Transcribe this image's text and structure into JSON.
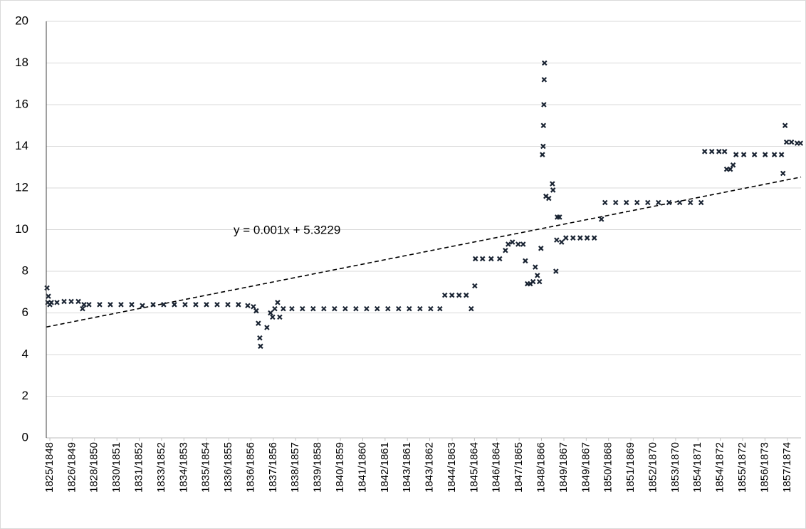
{
  "chart_data": {
    "type": "scatter",
    "marker": "x",
    "color": "#1a2433",
    "grid": true,
    "xlim": [
      0,
      7200
    ],
    "ylim": [
      0,
      20
    ],
    "yticks": [
      0,
      2,
      4,
      6,
      8,
      10,
      12,
      14,
      16,
      18,
      20
    ],
    "xticks": [
      {
        "value": 34,
        "label": "1825/1848"
      },
      {
        "value": 247,
        "label": "1826/1849"
      },
      {
        "value": 460,
        "label": "1828/1850"
      },
      {
        "value": 674,
        "label": "1830/1851"
      },
      {
        "value": 887,
        "label": "1831/1852"
      },
      {
        "value": 1100,
        "label": "1833/1852"
      },
      {
        "value": 1313,
        "label": "1834/1853"
      },
      {
        "value": 1526,
        "label": "1835/1854"
      },
      {
        "value": 1740,
        "label": "1836/1855"
      },
      {
        "value": 1953,
        "label": "1836/1856"
      },
      {
        "value": 2166,
        "label": "1837/1856"
      },
      {
        "value": 2379,
        "label": "1838/1857"
      },
      {
        "value": 2592,
        "label": "1839/1858"
      },
      {
        "value": 2806,
        "label": "1840/1859"
      },
      {
        "value": 3019,
        "label": "1841/1860"
      },
      {
        "value": 3232,
        "label": "1842/1861"
      },
      {
        "value": 3445,
        "label": "1843/1861"
      },
      {
        "value": 3658,
        "label": "1843/1862"
      },
      {
        "value": 3872,
        "label": "1844/1863"
      },
      {
        "value": 4085,
        "label": "1845/1864"
      },
      {
        "value": 4298,
        "label": "1846/1864"
      },
      {
        "value": 4511,
        "label": "1847/1865"
      },
      {
        "value": 4724,
        "label": "1848/1866"
      },
      {
        "value": 4938,
        "label": "1849/1867"
      },
      {
        "value": 5151,
        "label": "1849/1867"
      },
      {
        "value": 5364,
        "label": "1850/1868"
      },
      {
        "value": 5577,
        "label": "1851/1869"
      },
      {
        "value": 5790,
        "label": "1852/1870"
      },
      {
        "value": 6004,
        "label": "1853/1870"
      },
      {
        "value": 6217,
        "label": "1854/1871"
      },
      {
        "value": 6430,
        "label": "1854/1872"
      },
      {
        "value": 6643,
        "label": "1855/1872"
      },
      {
        "value": 6856,
        "label": "1856/1873"
      },
      {
        "value": 7070,
        "label": "1857/1874"
      }
    ],
    "x": [
      7,
      14,
      20,
      34,
      48,
      102,
      170,
      238,
      306,
      346,
      360,
      407,
      509,
      611,
      713,
      815,
      917,
      1019,
      1120,
      1222,
      1324,
      1426,
      1528,
      1630,
      1732,
      1833,
      1922,
      1976,
      2003,
      2023,
      2037,
      2044,
      2105,
      2139,
      2159,
      2180,
      2207,
      2227,
      2261,
      2343,
      2444,
      2546,
      2648,
      2750,
      2852,
      2954,
      3056,
      3157,
      3259,
      3361,
      3463,
      3565,
      3667,
      3755,
      3802,
      3870,
      3938,
      4006,
      4054,
      4088,
      4094,
      4162,
      4244,
      4325,
      4380,
      4407,
      4447,
      4502,
      4549,
      4570,
      4590,
      4617,
      4644,
      4665,
      4685,
      4705,
      4719,
      4733,
      4740,
      4743,
      4747,
      4750,
      4753,
      4767,
      4794,
      4828,
      4834,
      4862,
      4869,
      4875,
      4896,
      4916,
      4957,
      5025,
      5093,
      5160,
      5228,
      5296,
      5330,
      5432,
      5534,
      5636,
      5738,
      5840,
      5941,
      6043,
      6145,
      6247,
      6281,
      6349,
      6417,
      6471,
      6491,
      6525,
      6552,
      6580,
      6654,
      6756,
      6858,
      6946,
      7014,
      7028,
      7048,
      7062,
      7109,
      7163,
      7195
    ],
    "y": [
      7.2,
      6.5,
      6.8,
      6.4,
      6.5,
      6.5,
      6.55,
      6.55,
      6.55,
      6.2,
      6.4,
      6.4,
      6.4,
      6.4,
      6.4,
      6.4,
      6.35,
      6.4,
      6.4,
      6.4,
      6.4,
      6.4,
      6.4,
      6.4,
      6.4,
      6.4,
      6.35,
      6.3,
      6.1,
      5.5,
      4.8,
      4.4,
      5.3,
      6.0,
      5.8,
      6.2,
      6.5,
      5.8,
      6.2,
      6.2,
      6.2,
      6.2,
      6.2,
      6.2,
      6.2,
      6.2,
      6.2,
      6.2,
      6.2,
      6.2,
      6.2,
      6.2,
      6.2,
      6.2,
      6.85,
      6.85,
      6.85,
      6.85,
      6.2,
      7.3,
      8.6,
      8.6,
      8.6,
      8.6,
      9.0,
      9.3,
      9.4,
      9.3,
      9.3,
      8.5,
      7.4,
      7.4,
      7.5,
      8.2,
      7.8,
      7.5,
      9.1,
      13.6,
      14.0,
      15.0,
      16.0,
      17.2,
      18.0,
      11.6,
      11.5,
      12.2,
      11.9,
      8.0,
      9.5,
      10.6,
      10.6,
      9.4,
      9.6,
      9.6,
      9.6,
      9.6,
      9.6,
      10.5,
      11.3,
      11.3,
      11.3,
      11.3,
      11.3,
      11.3,
      11.3,
      11.3,
      11.3,
      11.3,
      13.75,
      13.75,
      13.75,
      13.75,
      12.9,
      12.9,
      13.1,
      13.6,
      13.6,
      13.6,
      13.6,
      13.6,
      13.6,
      12.7,
      15.0,
      14.2,
      14.2,
      14.15,
      14.15
    ],
    "trendline": {
      "slope": 0.001,
      "intercept": 5.3229,
      "label": "y = 0.001x + 5.3229",
      "color": "#000000"
    }
  }
}
